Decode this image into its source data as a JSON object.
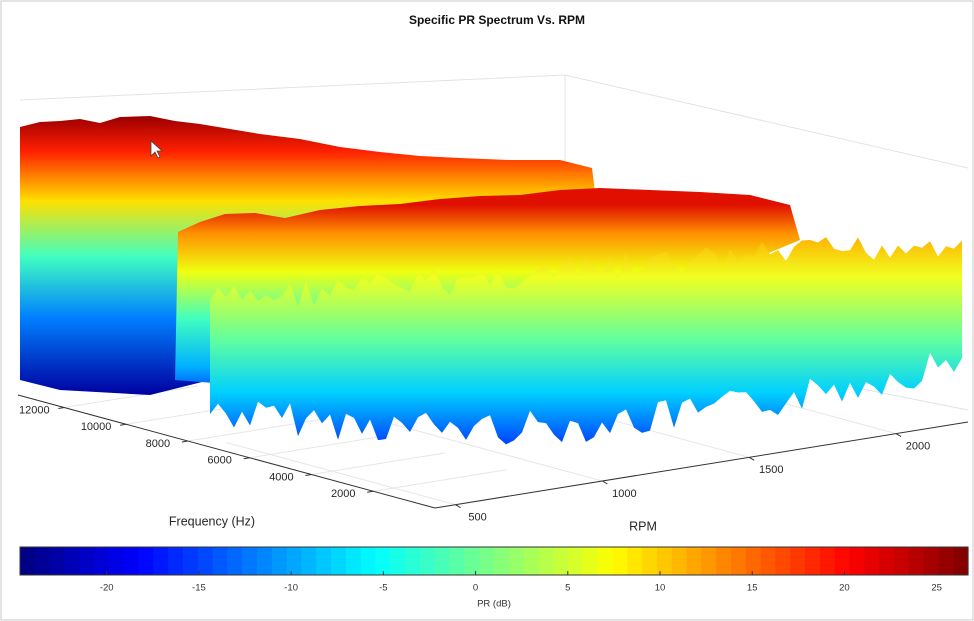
{
  "chart_data": {
    "type": "surface",
    "title": "Specific PR Spectrum Vs. RPM",
    "xlabel": "RPM",
    "ylabel": "Frequency (Hz)",
    "xlim": [
      430,
      2245
    ],
    "xticks": [
      500,
      1000,
      1500,
      2000
    ],
    "ylim": [
      0,
      13500
    ],
    "yticks": [
      2000,
      4000,
      6000,
      8000,
      10000,
      12000
    ],
    "colorbar": {
      "label": "PR (dB)",
      "lim": [
        -24.7,
        26.7
      ],
      "ticks": [
        -20,
        -15,
        -10,
        -5,
        0,
        5,
        10,
        15,
        20,
        25
      ],
      "colormap": "jet"
    }
  }
}
